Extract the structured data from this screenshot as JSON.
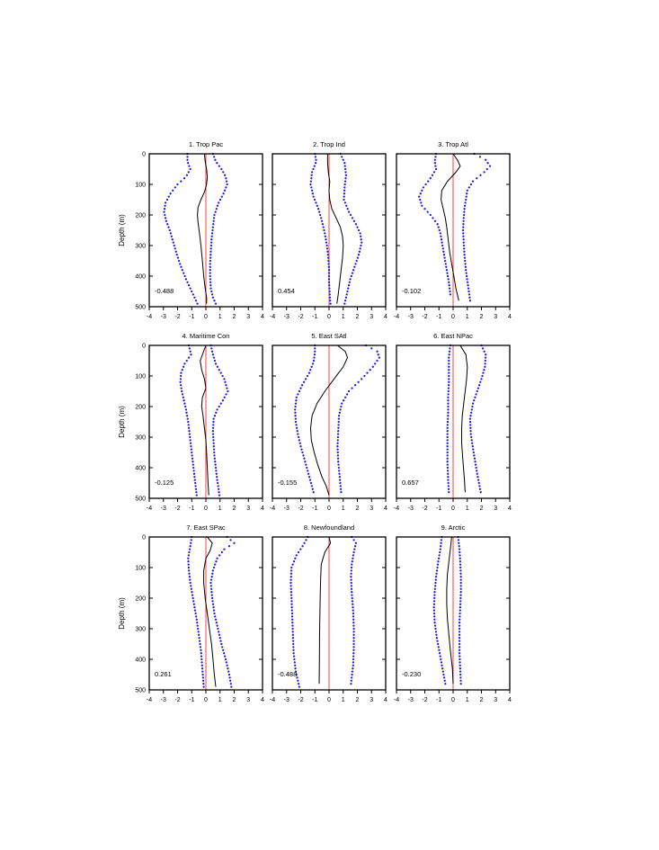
{
  "figure": {
    "xlim": [
      -4,
      4
    ],
    "ylim": [
      0,
      500
    ],
    "x_ticks": [
      "-4",
      "-3",
      "-2",
      "-1",
      "0",
      "1",
      "2",
      "3",
      "4"
    ],
    "y_ticks": [
      "0",
      "100",
      "200",
      "300",
      "400",
      "500"
    ],
    "y_axis_label": "Depth (m)",
    "colors": {
      "mean_line": "#000000",
      "spread_dots": "#1f1fd6",
      "zero_line": "#ff2a2a",
      "axes": "#000000"
    }
  },
  "chart_data": [
    {
      "type": "line",
      "title": "1. Trop Pac",
      "stat": "-0.488",
      "ylabel": "Depth (m)",
      "y_inverted": true,
      "series": [
        {
          "role": "mean",
          "x": [
            -0.1,
            -0.05,
            0.05,
            0.1,
            0.05,
            -0.1,
            -0.35,
            -0.55,
            -0.6,
            -0.55,
            -0.45,
            -0.35,
            -0.25,
            -0.15,
            -0.05,
            0.05,
            0.05
          ],
          "depth": [
            0,
            25,
            50,
            75,
            100,
            125,
            150,
            175,
            200,
            225,
            260,
            300,
            350,
            400,
            440,
            470,
            490
          ]
        },
        {
          "role": "lower",
          "x": [
            -1.3,
            -1.3,
            -1.1,
            -1.4,
            -2.0,
            -2.5,
            -2.85,
            -2.95,
            -2.8,
            -2.55,
            -2.3,
            -2.05,
            -1.75,
            -1.4,
            -1.0,
            -0.6
          ],
          "depth": [
            0,
            25,
            50,
            75,
            100,
            130,
            160,
            190,
            220,
            250,
            290,
            330,
            370,
            410,
            450,
            490
          ]
        },
        {
          "role": "upper",
          "x": [
            0.5,
            0.7,
            1.1,
            1.4,
            1.5,
            1.3,
            0.9,
            0.6,
            0.5,
            0.4,
            0.35,
            0.3,
            0.3,
            0.35,
            0.5,
            0.7
          ],
          "depth": [
            0,
            25,
            50,
            75,
            100,
            125,
            160,
            200,
            240,
            280,
            320,
            360,
            400,
            440,
            470,
            490
          ]
        }
      ]
    },
    {
      "type": "line",
      "title": "2. Trop Ind",
      "stat": "0.454",
      "ylabel": "",
      "y_inverted": true,
      "series": [
        {
          "role": "mean",
          "x": [
            -0.1,
            -0.1,
            -0.05,
            0.05,
            0.0,
            0.05,
            0.2,
            0.5,
            0.8,
            0.95,
            1.0,
            0.95,
            0.85,
            0.75,
            0.65,
            0.55
          ],
          "depth": [
            0,
            30,
            60,
            90,
            120,
            150,
            180,
            210,
            240,
            270,
            300,
            340,
            380,
            420,
            460,
            490
          ]
        },
        {
          "role": "lower",
          "x": [
            -1.0,
            -0.9,
            -1.2,
            -1.3,
            -1.1,
            -0.75,
            -0.5,
            -0.3,
            -0.15,
            -0.05,
            0.0,
            0.0,
            0.05,
            0.1
          ],
          "depth": [
            0,
            25,
            60,
            100,
            140,
            180,
            220,
            260,
            300,
            340,
            380,
            420,
            460,
            490
          ]
        },
        {
          "role": "upper",
          "x": [
            0.8,
            1.1,
            1.2,
            1.1,
            1.05,
            1.4,
            1.9,
            2.2,
            2.3,
            2.1,
            1.8,
            1.5,
            1.3,
            1.1
          ],
          "depth": [
            0,
            30,
            70,
            110,
            150,
            190,
            230,
            260,
            290,
            330,
            370,
            410,
            450,
            490
          ]
        }
      ]
    },
    {
      "type": "line",
      "title": "3. Trop Atl",
      "stat": "-0.102",
      "ylabel": "",
      "y_inverted": true,
      "series": [
        {
          "role": "mean",
          "x": [
            0.0,
            0.3,
            0.5,
            0.2,
            -0.4,
            -0.8,
            -0.85,
            -0.7,
            -0.55,
            -0.45,
            -0.35,
            -0.25,
            -0.1,
            0.05,
            0.2,
            0.4
          ],
          "depth": [
            0,
            20,
            40,
            60,
            90,
            120,
            150,
            180,
            210,
            240,
            280,
            320,
            360,
            400,
            440,
            480
          ]
        },
        {
          "role": "lower",
          "x": [
            -1.2,
            -1.3,
            -1.2,
            -1.6,
            -2.1,
            -2.4,
            -2.2,
            -1.6,
            -1.1,
            -0.9,
            -0.75,
            -0.6,
            -0.45,
            -0.3,
            -0.2
          ],
          "depth": [
            0,
            25,
            50,
            80,
            110,
            140,
            170,
            200,
            230,
            260,
            300,
            340,
            380,
            420,
            460
          ]
        },
        {
          "role": "upper",
          "x": [
            1.5,
            2.3,
            2.6,
            2.2,
            1.4,
            1.0,
            0.9,
            0.8,
            0.75,
            0.7,
            0.75,
            0.8,
            0.9,
            1.05,
            1.2
          ],
          "depth": [
            0,
            20,
            40,
            60,
            90,
            120,
            150,
            180,
            210,
            250,
            290,
            330,
            380,
            430,
            480
          ]
        }
      ]
    },
    {
      "type": "line",
      "title": "4. Maritime Con",
      "stat": "-0.125",
      "ylabel": "Depth (m)",
      "y_inverted": true,
      "series": [
        {
          "role": "mean",
          "x": [
            0.0,
            -0.2,
            -0.4,
            -0.3,
            -0.1,
            0.0,
            -0.25,
            -0.3,
            -0.2,
            -0.1,
            0.0,
            0.05,
            0.1,
            0.15,
            0.2
          ],
          "depth": [
            0,
            25,
            50,
            80,
            110,
            140,
            170,
            200,
            230,
            270,
            310,
            350,
            400,
            450,
            490
          ]
        },
        {
          "role": "lower",
          "x": [
            -1.2,
            -1.05,
            -1.5,
            -1.75,
            -1.8,
            -1.7,
            -1.55,
            -1.4,
            -1.25,
            -1.15,
            -1.05,
            -0.95,
            -0.85,
            -0.75,
            -0.65
          ],
          "depth": [
            0,
            30,
            60,
            90,
            120,
            150,
            180,
            210,
            250,
            290,
            330,
            370,
            410,
            450,
            490
          ]
        },
        {
          "role": "upper",
          "x": [
            0.35,
            0.5,
            0.7,
            1.3,
            1.55,
            1.2,
            0.8,
            0.55,
            0.5,
            0.55,
            0.6,
            0.7,
            0.8,
            0.9,
            0.95
          ],
          "depth": [
            0,
            30,
            60,
            110,
            150,
            180,
            210,
            240,
            280,
            320,
            360,
            400,
            440,
            470,
            490
          ]
        }
      ]
    },
    {
      "type": "line",
      "title": "5. East SAtl",
      "stat": "-0.155",
      "ylabel": "",
      "y_inverted": true,
      "series": [
        {
          "role": "mean",
          "x": [
            0.6,
            1.15,
            1.3,
            1.0,
            0.35,
            -0.3,
            -0.85,
            -1.2,
            -1.3,
            -1.25,
            -1.05,
            -0.8,
            -0.5,
            -0.2,
            0.0
          ],
          "depth": [
            0,
            20,
            40,
            70,
            110,
            150,
            190,
            230,
            270,
            310,
            350,
            390,
            430,
            460,
            490
          ]
        },
        {
          "role": "lower",
          "x": [
            -1.0,
            -1.0,
            -1.1,
            -1.4,
            -1.9,
            -2.3,
            -2.4,
            -2.35,
            -2.2,
            -2.0,
            -1.75,
            -1.45,
            -1.1
          ],
          "depth": [
            0,
            25,
            55,
            90,
            130,
            170,
            210,
            250,
            290,
            330,
            370,
            420,
            480
          ]
        },
        {
          "role": "upper",
          "x": [
            2.6,
            3.4,
            3.55,
            3.1,
            2.3,
            1.4,
            0.9,
            0.7,
            0.65,
            0.6,
            0.65,
            0.75,
            0.85
          ],
          "depth": [
            0,
            20,
            40,
            70,
            110,
            150,
            190,
            230,
            280,
            330,
            380,
            430,
            480
          ]
        }
      ]
    },
    {
      "type": "line",
      "title": "6. East NPac",
      "stat": "0.657",
      "ylabel": "",
      "y_inverted": true,
      "series": [
        {
          "role": "mean",
          "x": [
            0.5,
            0.9,
            1.0,
            0.95,
            0.85,
            0.75,
            0.65,
            0.6,
            0.6,
            0.7,
            0.8,
            0.85
          ],
          "depth": [
            0,
            30,
            70,
            110,
            150,
            190,
            230,
            270,
            320,
            380,
            440,
            480
          ]
        },
        {
          "role": "lower",
          "x": [
            -0.2,
            -0.3,
            -0.3,
            -0.3,
            -0.35,
            -0.35,
            -0.4,
            -0.4,
            -0.4,
            -0.35,
            -0.3
          ],
          "depth": [
            0,
            40,
            80,
            120,
            170,
            220,
            270,
            320,
            380,
            440,
            480
          ]
        },
        {
          "role": "upper",
          "x": [
            2.0,
            2.3,
            2.25,
            2.0,
            1.7,
            1.4,
            1.2,
            1.25,
            1.45,
            1.7,
            1.95
          ],
          "depth": [
            0,
            30,
            70,
            110,
            150,
            190,
            240,
            290,
            350,
            420,
            480
          ]
        }
      ]
    },
    {
      "type": "line",
      "title": "7. East SPac",
      "stat": "0.261",
      "ylabel": "Depth (m)",
      "y_inverted": true,
      "series": [
        {
          "role": "mean",
          "x": [
            0.1,
            0.45,
            0.3,
            0.0,
            -0.15,
            -0.15,
            -0.05,
            0.1,
            0.25,
            0.4,
            0.5,
            0.6,
            0.7
          ],
          "depth": [
            0,
            20,
            45,
            70,
            110,
            150,
            200,
            250,
            300,
            350,
            400,
            450,
            490
          ]
        },
        {
          "role": "lower",
          "x": [
            -1.0,
            -1.1,
            -1.25,
            -1.2,
            -1.1,
            -0.95,
            -0.8,
            -0.65,
            -0.5,
            -0.35,
            -0.25,
            -0.15
          ],
          "depth": [
            0,
            30,
            70,
            110,
            150,
            190,
            230,
            270,
            320,
            370,
            430,
            490
          ]
        },
        {
          "role": "upper",
          "x": [
            1.5,
            2.0,
            1.3,
            0.8,
            0.5,
            0.35,
            0.45,
            0.6,
            0.85,
            1.1,
            1.4,
            1.65,
            1.8
          ],
          "depth": [
            0,
            20,
            40,
            70,
            110,
            150,
            200,
            250,
            300,
            350,
            400,
            450,
            490
          ]
        }
      ]
    },
    {
      "type": "line",
      "title": "8. Newfoundland",
      "stat": "-0.488",
      "ylabel": "",
      "y_inverted": true,
      "series": [
        {
          "role": "mean",
          "x": [
            0.0,
            0.1,
            -0.3,
            -0.55,
            -0.6,
            -0.62,
            -0.64,
            -0.66,
            -0.67,
            -0.68,
            -0.7
          ],
          "depth": [
            0,
            20,
            50,
            90,
            140,
            190,
            240,
            290,
            340,
            400,
            480
          ]
        },
        {
          "role": "lower",
          "x": [
            -1.5,
            -1.8,
            -2.3,
            -2.65,
            -2.7,
            -2.65,
            -2.6,
            -2.55,
            -2.5,
            -2.35,
            -2.1
          ],
          "depth": [
            0,
            25,
            60,
            100,
            150,
            200,
            260,
            320,
            380,
            440,
            490
          ]
        },
        {
          "role": "upper",
          "x": [
            1.6,
            1.9,
            1.75,
            1.6,
            1.55,
            1.6,
            1.7,
            1.75,
            1.75,
            1.7,
            1.55
          ],
          "depth": [
            0,
            20,
            50,
            90,
            130,
            180,
            240,
            300,
            360,
            420,
            480
          ]
        }
      ]
    },
    {
      "type": "line",
      "title": "9. Arctic",
      "stat": "-0.230",
      "ylabel": "",
      "y_inverted": true,
      "series": [
        {
          "role": "mean",
          "x": [
            -0.1,
            -0.2,
            -0.3,
            -0.4,
            -0.45,
            -0.45,
            -0.4,
            -0.3,
            -0.2,
            -0.05,
            0.0
          ],
          "depth": [
            0,
            40,
            80,
            120,
            170,
            220,
            270,
            320,
            370,
            430,
            480
          ]
        },
        {
          "role": "lower",
          "x": [
            -0.8,
            -0.9,
            -1.05,
            -1.2,
            -1.3,
            -1.35,
            -1.3,
            -1.15,
            -0.95,
            -0.75,
            -0.55
          ],
          "depth": [
            0,
            40,
            80,
            130,
            180,
            230,
            280,
            330,
            380,
            430,
            480
          ]
        },
        {
          "role": "upper",
          "x": [
            0.35,
            0.45,
            0.5,
            0.55,
            0.55,
            0.5,
            0.45,
            0.45,
            0.45,
            0.5,
            0.55
          ],
          "depth": [
            0,
            40,
            80,
            130,
            180,
            230,
            280,
            330,
            380,
            430,
            480
          ]
        }
      ]
    }
  ]
}
